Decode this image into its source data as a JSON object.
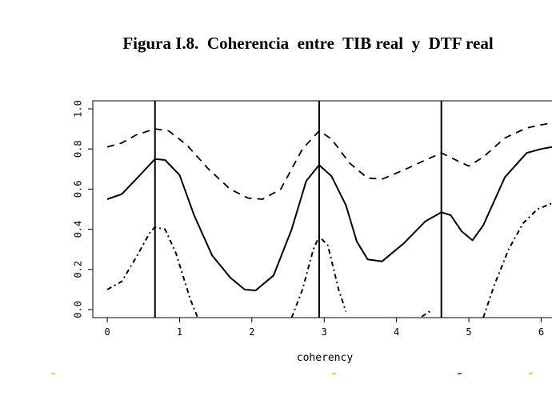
{
  "figure_title": "Figura I.8.  Coherencia  entre  TIB real  y  DTF real",
  "colors": {
    "line": "#000000",
    "mark_yellow": "#f2d21a",
    "mark_blue": "#3a7fa6"
  },
  "chart_data": {
    "type": "line",
    "title": "Figura I.8.  Coherencia  entre  TIB real  y  DTF real",
    "xlabel": "coherency",
    "ylabel": "",
    "xlim": [
      -0.2,
      6.15
    ],
    "ylim": [
      -0.04,
      1.04
    ],
    "x_ticks": [
      0,
      1,
      2,
      3,
      4,
      5,
      6
    ],
    "x_tick_labels": [
      "0",
      "1",
      "2",
      "3",
      "4",
      "5",
      "6"
    ],
    "y_ticks": [
      0.0,
      0.2,
      0.4,
      0.6,
      0.8,
      1.0
    ],
    "y_tick_labels": [
      "0.0",
      "0.2",
      "0.4",
      "0.6",
      "0.8",
      "1.0"
    ],
    "grid": false,
    "vlines": [
      0.66,
      2.93,
      4.62
    ],
    "series": [
      {
        "style": "dashed",
        "x": [
          0,
          0.2,
          0.4,
          0.66,
          0.85,
          1.1,
          1.4,
          1.7,
          1.95,
          2.15,
          2.4,
          2.7,
          2.93,
          3.1,
          3.35,
          3.6,
          3.8,
          4.1,
          4.4,
          4.62,
          4.85,
          5.0,
          5.2,
          5.5,
          5.8,
          6.0,
          6.15
        ],
        "y": [
          0.81,
          0.83,
          0.87,
          0.9,
          0.89,
          0.82,
          0.7,
          0.6,
          0.555,
          0.55,
          0.6,
          0.8,
          0.89,
          0.85,
          0.73,
          0.655,
          0.65,
          0.695,
          0.745,
          0.78,
          0.74,
          0.715,
          0.76,
          0.855,
          0.905,
          0.92,
          0.93
        ]
      },
      {
        "style": "solid",
        "x": [
          0,
          0.2,
          0.4,
          0.66,
          0.8,
          1.0,
          1.2,
          1.45,
          1.7,
          1.9,
          2.05,
          2.3,
          2.55,
          2.75,
          2.93,
          3.1,
          3.3,
          3.45,
          3.6,
          3.8,
          4.1,
          4.4,
          4.62,
          4.75,
          4.9,
          5.05,
          5.2,
          5.5,
          5.8,
          6.0,
          6.15
        ],
        "y": [
          0.55,
          0.575,
          0.65,
          0.75,
          0.745,
          0.67,
          0.47,
          0.27,
          0.16,
          0.1,
          0.095,
          0.17,
          0.4,
          0.64,
          0.72,
          0.665,
          0.52,
          0.34,
          0.25,
          0.24,
          0.33,
          0.44,
          0.485,
          0.47,
          0.39,
          0.345,
          0.42,
          0.66,
          0.78,
          0.8,
          0.81
        ]
      },
      {
        "style": "dotted",
        "segments": [
          {
            "x": [
              0,
              0.2,
              0.4,
              0.6,
              0.66,
              0.8,
              0.95,
              1.15,
              1.25
            ],
            "y": [
              0.1,
              0.14,
              0.26,
              0.39,
              0.41,
              0.4,
              0.28,
              0.05,
              -0.04
            ]
          },
          {
            "x": [
              2.55,
              2.7,
              2.85,
              2.93,
              3.05,
              3.2,
              3.3
            ],
            "y": [
              -0.04,
              0.1,
              0.3,
              0.365,
              0.32,
              0.1,
              -0.01
            ]
          },
          {
            "x": [
              4.35,
              4.5
            ],
            "y": [
              -0.035,
              0.0
            ]
          },
          {
            "x": [
              5.2,
              5.35,
              5.55,
              5.75,
              5.95,
              6.15
            ],
            "y": [
              -0.04,
              0.12,
              0.3,
              0.43,
              0.5,
              0.53
            ]
          }
        ]
      }
    ]
  }
}
